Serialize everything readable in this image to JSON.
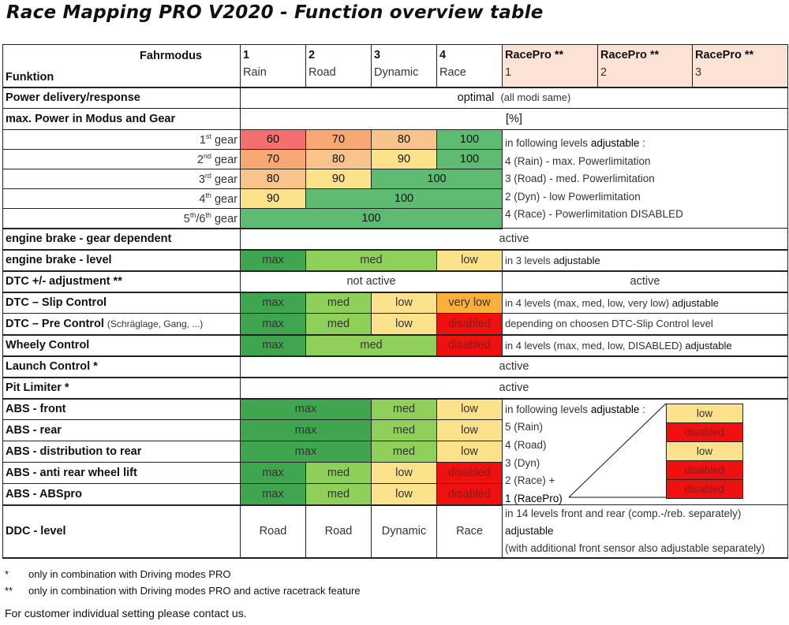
{
  "title": "Race Mapping PRO V2020 - Function overview table",
  "colors": {
    "red": "#f47070",
    "orange": "#f7a873",
    "light_orange": "#f9c48c",
    "yellow": "#fde28c",
    "green": "#5dbb72",
    "dark_green": "#3fa64f",
    "light_green": "#8fd05a",
    "bright_red": "#f01010",
    "pink_header": "#fde3d6"
  },
  "header": {
    "fahrmodus": "Fahrmodus",
    "funktion": "Funktion",
    "modes": [
      {
        "num": "1",
        "name": "Rain"
      },
      {
        "num": "2",
        "name": "Road"
      },
      {
        "num": "3",
        "name": "Dynamic"
      },
      {
        "num": "4",
        "name": "Race"
      },
      {
        "num": "RacePro **",
        "name": "1"
      },
      {
        "num": "RacePro **",
        "name": "2"
      },
      {
        "num": "RacePro **",
        "name": "3"
      }
    ]
  },
  "rows": {
    "power_delivery": {
      "label": "Power delivery/response",
      "value": "optimal",
      "note": "(all modi same)"
    },
    "max_power": {
      "label": "max. Power in Modus and Gear",
      "unit": "[%]"
    },
    "gears": [
      {
        "ord": "1",
        "sup": "st",
        "word": "gear",
        "vals": [
          "60",
          "70",
          "80",
          "100"
        ]
      },
      {
        "ord": "2",
        "sup": "nd",
        "word": "gear",
        "vals": [
          "70",
          "80",
          "90",
          "100"
        ]
      },
      {
        "ord": "3",
        "sup": "rd",
        "word": "gear",
        "vals": [
          "80",
          "90",
          "100"
        ]
      },
      {
        "ord": "4",
        "sup": "th",
        "word": "gear",
        "vals": [
          "90",
          "100"
        ]
      },
      {
        "ord": "5",
        "sup": "th",
        "mid": "/6",
        "sup2": "th",
        "word": "gear",
        "vals": [
          "100"
        ]
      }
    ],
    "power_notes": {
      "line1_a": "in following levels",
      "line1_b": "adjustable",
      "line1_c": ":",
      "line2": "4 (Rain)   - max. Powerlimitation",
      "line3": "3 (Road) - med. Powerlimitation",
      "line4": "2 (Dyn)   - low Powerlimitation",
      "line5": "4 (Race) - Powerlimitation DISABLED"
    },
    "engine_brake_gear": {
      "label": "engine brake - gear dependent",
      "value": "active"
    },
    "engine_brake_level": {
      "label": "engine brake - level",
      "vals": [
        "max",
        "med",
        "low"
      ],
      "note_a": "in 3 levels",
      "note_b": "adjustable"
    },
    "dtc_adjust": {
      "label": "DTC +/- adjustment **",
      "left": "not active",
      "right": "active"
    },
    "dtc_slip": {
      "label": "DTC – Slip Control",
      "vals": [
        "max",
        "med",
        "low",
        "very low"
      ],
      "note_a": "in 4 levels (max, med, low, very low)",
      "note_b": "adjustable"
    },
    "dtc_pre": {
      "label": "DTC – Pre Control",
      "sub": "(Schräglage, Gang, ...)",
      "vals": [
        "max",
        "med",
        "low",
        "disabled"
      ],
      "note": "depending on choosen DTC-Slip Control level"
    },
    "wheely": {
      "label": "Wheely Control",
      "vals": [
        "max",
        "med",
        "disabled"
      ],
      "note_a": "in 4 levels (max, med, low, DISABLED)",
      "note_b": "adjustable"
    },
    "launch": {
      "label": "Launch Control *",
      "value": "active"
    },
    "pit": {
      "label": "Pit Limiter *",
      "value": "active"
    },
    "abs_front": {
      "label": "ABS - front",
      "vals": [
        "max",
        "med",
        "low"
      ]
    },
    "abs_rear": {
      "label": "ABS - rear",
      "vals": [
        "max",
        "med",
        "low"
      ]
    },
    "abs_dist": {
      "label": "ABS - distribution to rear",
      "vals": [
        "max",
        "med",
        "low"
      ]
    },
    "abs_lift": {
      "label": "ABS - anti rear wheel lift",
      "vals": [
        "max",
        "med",
        "low",
        "disabled"
      ]
    },
    "abs_pro": {
      "label": "ABS - ABSpro",
      "vals": [
        "max",
        "med",
        "low",
        "disabled"
      ]
    },
    "abs_notes": {
      "line1_a": "in following levels",
      "line1_b": "adjustable",
      "line1_c": ":",
      "lines": [
        "5 (Rain)",
        "4 (Road)",
        "3 (Dyn)",
        "2 (Race) +",
        "1 (RacePro)"
      ],
      "box": [
        "low",
        "disabled",
        "low",
        "disabled",
        "disabled"
      ]
    },
    "ddc": {
      "label": "DDC - level",
      "vals": [
        "Road",
        "Road",
        "Dynamic",
        "Race"
      ],
      "note1": "in 14 levels front and rear (comp.-/reb. separately)",
      "note2": "adjustable",
      "note3": "(with additional front sensor also adjustable separately)"
    }
  },
  "footnotes": {
    "f1_mark": "*",
    "f1_text": "only in combination with Driving modes PRO",
    "f2_mark": "**",
    "f2_text": "only in combination with Driving modes PRO and active racetrack feature",
    "customer": "For customer individual setting please contact us."
  }
}
